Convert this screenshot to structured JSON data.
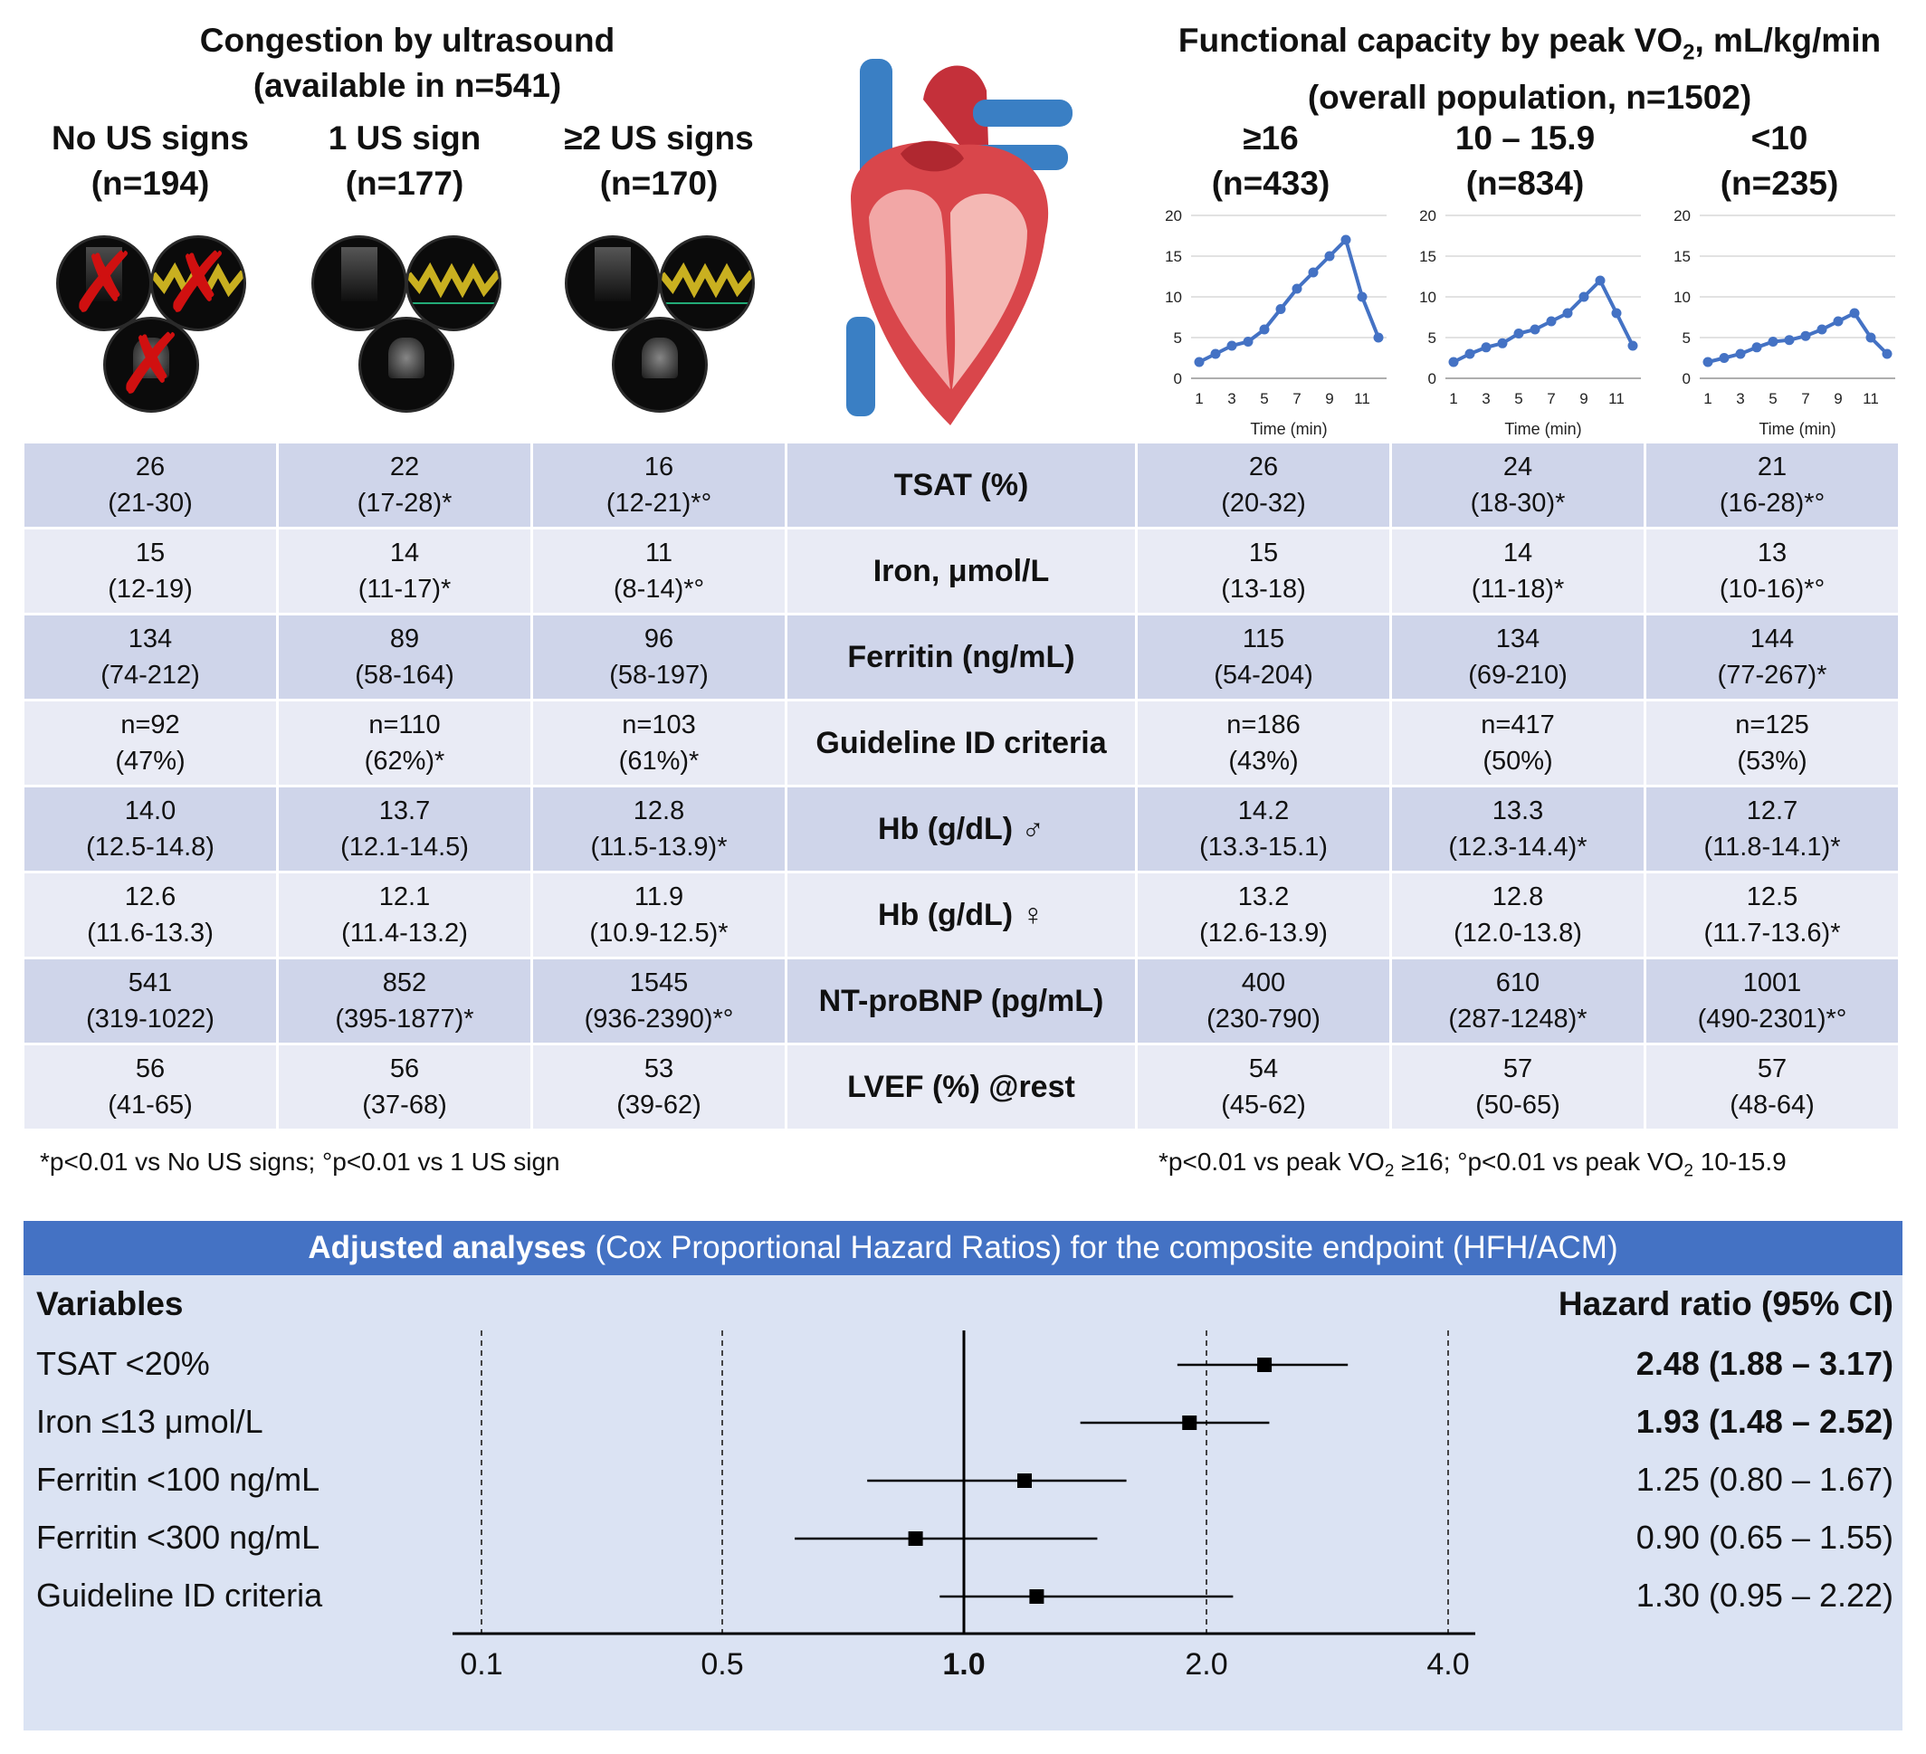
{
  "left_header": {
    "title_line1": "Congestion by ultrasound",
    "title_line2": "(available in n=541)",
    "groups": [
      {
        "label": "No US signs",
        "n": "(n=194)"
      },
      {
        "label": "1 US sign",
        "n": "(n=177)"
      },
      {
        "label": "≥2 US signs",
        "n": "(n=170)"
      }
    ]
  },
  "right_header": {
    "title_line1": "Functional capacity by peak VO",
    "title_sub": "2",
    "title_line1_end": ", mL/kg/min",
    "title_line2": "(overall population, n=1502)",
    "groups": [
      {
        "label": "≥16",
        "n": "(n=433)"
      },
      {
        "label": "10 – 15.9",
        "n": "(n=834)"
      },
      {
        "label": "<10",
        "n": "(n=235)"
      }
    ]
  },
  "mini_charts": {
    "xlabel": "Time (min)",
    "y_ticks": [
      "0",
      "5",
      "10",
      "15",
      "20"
    ],
    "x_ticks": [
      "1",
      "3",
      "5",
      "7",
      "9",
      "11"
    ]
  },
  "table": {
    "rows": [
      {
        "label": "TSAT (%)",
        "left": [
          [
            "26",
            "(21-30)"
          ],
          [
            "22",
            "(17-28)*"
          ],
          [
            "16",
            "(12-21)*°"
          ]
        ],
        "right": [
          [
            "26",
            "(20-32)"
          ],
          [
            "24",
            "(18-30)*"
          ],
          [
            "21",
            "(16-28)*°"
          ]
        ]
      },
      {
        "label": "Iron, μmol/L",
        "left": [
          [
            "15",
            "(12-19)"
          ],
          [
            "14",
            "(11-17)*"
          ],
          [
            "11",
            "(8-14)*°"
          ]
        ],
        "right": [
          [
            "15",
            "(13-18)"
          ],
          [
            "14",
            "(11-18)*"
          ],
          [
            "13",
            "(10-16)*°"
          ]
        ]
      },
      {
        "label": "Ferritin (ng/mL)",
        "left": [
          [
            "134",
            "(74-212)"
          ],
          [
            "89",
            "(58-164)"
          ],
          [
            "96",
            "(58-197)"
          ]
        ],
        "right": [
          [
            "115",
            "(54-204)"
          ],
          [
            "134",
            "(69-210)"
          ],
          [
            "144",
            "(77-267)*"
          ]
        ]
      },
      {
        "label": "Guideline ID criteria",
        "left": [
          [
            "n=92",
            "(47%)"
          ],
          [
            "n=110",
            "(62%)*"
          ],
          [
            "n=103",
            "(61%)*"
          ]
        ],
        "right": [
          [
            "n=186",
            "(43%)"
          ],
          [
            "n=417",
            "(50%)"
          ],
          [
            "n=125",
            "(53%)"
          ]
        ]
      },
      {
        "label": "Hb (g/dL) ♂",
        "left": [
          [
            "14.0",
            "(12.5-14.8)"
          ],
          [
            "13.7",
            "(12.1-14.5)"
          ],
          [
            "12.8",
            "(11.5-13.9)*"
          ]
        ],
        "right": [
          [
            "14.2",
            "(13.3-15.1)"
          ],
          [
            "13.3",
            "(12.3-14.4)*"
          ],
          [
            "12.7",
            "(11.8-14.1)*"
          ]
        ]
      },
      {
        "label": "Hb (g/dL) ♀",
        "left": [
          [
            "12.6",
            "(11.6-13.3)"
          ],
          [
            "12.1",
            "(11.4-13.2)"
          ],
          [
            "11.9",
            "(10.9-12.5)*"
          ]
        ],
        "right": [
          [
            "13.2",
            "(12.6-13.9)"
          ],
          [
            "12.8",
            "(12.0-13.8)"
          ],
          [
            "12.5",
            "(11.7-13.6)*"
          ]
        ]
      },
      {
        "label": "NT-proBNP (pg/mL)",
        "left": [
          [
            "541",
            "(319-1022)"
          ],
          [
            "852",
            "(395-1877)*"
          ],
          [
            "1545",
            "(936-2390)*°"
          ]
        ],
        "right": [
          [
            "400",
            "(230-790)"
          ],
          [
            "610",
            "(287-1248)*"
          ],
          [
            "1001",
            "(490-2301)*°"
          ]
        ]
      },
      {
        "label": "LVEF (%) @rest",
        "left": [
          [
            "56",
            "(41-65)"
          ],
          [
            "56",
            "(37-68)"
          ],
          [
            "53",
            "(39-62)"
          ]
        ],
        "right": [
          [
            "54",
            "(45-62)"
          ],
          [
            "57",
            "(50-65)"
          ],
          [
            "57",
            "(48-64)"
          ]
        ]
      }
    ]
  },
  "footnotes": {
    "left": "*p<0.01 vs No US signs; °p<0.01 vs 1 US sign",
    "right_part1": "*p<0.01 vs peak VO",
    "right_sub": "2",
    "right_part2": " ≥16; °p<0.01 vs peak VO",
    "right_part3": " 10-15.9"
  },
  "forest": {
    "header_bold": "Adjusted analyses",
    "header_rest": " (Cox Proportional Hazard Ratios) for the composite endpoint (HFH/ACM)",
    "variables_label": "Variables",
    "hr_label": "Hazard ratio (95% CI)",
    "rows": [
      {
        "label": "TSAT <20%",
        "hr_text": "2.48 (1.88 – 3.17)",
        "bold": true
      },
      {
        "label": "Iron ≤13 μmol/L",
        "hr_text": "1.93 (1.48 – 2.52)",
        "bold": true
      },
      {
        "label": "Ferritin <100 ng/mL",
        "hr_text": "1.25 (0.80 – 1.67)",
        "bold": false
      },
      {
        "label": "Ferritin <300 ng/mL",
        "hr_text": "0.90 (0.65 – 1.55)",
        "bold": false
      },
      {
        "label": "Guideline ID criteria",
        "hr_text": "1.30 (0.95 – 2.22)",
        "bold": false
      }
    ],
    "ticks": [
      "0.1",
      "0.5",
      "1.0",
      "2.0",
      "4.0"
    ]
  },
  "chart_data": [
    {
      "type": "line",
      "title": "≥16 (n=433)",
      "xlabel": "Time (min)",
      "ylabel": "",
      "ylim": [
        0,
        20
      ],
      "x": [
        1,
        2,
        3,
        4,
        5,
        6,
        7,
        8,
        9,
        10,
        11,
        12
      ],
      "values": [
        2,
        3,
        4,
        4.5,
        6,
        8.5,
        11,
        13,
        15,
        17,
        10,
        5
      ]
    },
    {
      "type": "line",
      "title": "10 – 15.9 (n=834)",
      "xlabel": "Time (min)",
      "ylabel": "",
      "ylim": [
        0,
        20
      ],
      "x": [
        1,
        2,
        3,
        4,
        5,
        6,
        7,
        8,
        9,
        10,
        11,
        12
      ],
      "values": [
        2,
        3,
        3.8,
        4.3,
        5.5,
        6,
        7,
        8,
        10,
        12,
        8,
        4
      ]
    },
    {
      "type": "line",
      "title": "<10 (n=235)",
      "xlabel": "Time (min)",
      "ylabel": "",
      "ylim": [
        0,
        20
      ],
      "x": [
        1,
        2,
        3,
        4,
        5,
        6,
        7,
        8,
        9,
        10,
        11,
        12
      ],
      "values": [
        2,
        2.5,
        3,
        3.8,
        4.5,
        4.7,
        5.2,
        6,
        7,
        8,
        5,
        3
      ]
    },
    {
      "type": "scatter",
      "title": "Adjusted analyses (Cox Proportional Hazard Ratios) for the composite endpoint (HFH/ACM)",
      "xlabel": "Hazard ratio",
      "ylabel": "",
      "x_ticks": [
        0.1,
        0.5,
        1.0,
        2.0,
        4.0
      ],
      "reference_line": 1.0,
      "categories": [
        "TSAT <20%",
        "Iron ≤13 μmol/L",
        "Ferritin <100 ng/mL",
        "Ferritin <300 ng/mL",
        "Guideline ID criteria"
      ],
      "hr": [
        2.48,
        1.93,
        1.25,
        0.9,
        1.3
      ],
      "ci_low": [
        1.88,
        1.48,
        0.8,
        0.65,
        0.95
      ],
      "ci_high": [
        3.17,
        2.52,
        1.67,
        1.55,
        2.22
      ]
    }
  ]
}
